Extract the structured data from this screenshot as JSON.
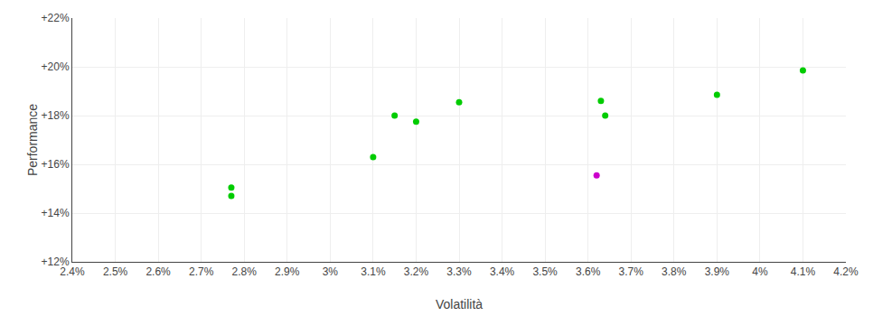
{
  "chart_data": {
    "type": "scatter",
    "xlabel": "Volatilità",
    "ylabel": "Performance",
    "xlim": [
      0.024,
      0.042
    ],
    "ylim": [
      0.12,
      0.22
    ],
    "xticks": [
      {
        "value": 0.024,
        "label": "2.4%"
      },
      {
        "value": 0.025,
        "label": "2.5%"
      },
      {
        "value": 0.026,
        "label": "2.6%"
      },
      {
        "value": 0.027,
        "label": "2.7%"
      },
      {
        "value": 0.028,
        "label": "2.8%"
      },
      {
        "value": 0.029,
        "label": "2.9%"
      },
      {
        "value": 0.03,
        "label": "3%"
      },
      {
        "value": 0.031,
        "label": "3.1%"
      },
      {
        "value": 0.032,
        "label": "3.2%"
      },
      {
        "value": 0.033,
        "label": "3.3%"
      },
      {
        "value": 0.034,
        "label": "3.4%"
      },
      {
        "value": 0.035,
        "label": "3.5%"
      },
      {
        "value": 0.036,
        "label": "3.6%"
      },
      {
        "value": 0.037,
        "label": "3.7%"
      },
      {
        "value": 0.038,
        "label": "3.8%"
      },
      {
        "value": 0.039,
        "label": "3.9%"
      },
      {
        "value": 0.04,
        "label": "4%"
      },
      {
        "value": 0.041,
        "label": "4.1%"
      },
      {
        "value": 0.042,
        "label": "4.2%"
      }
    ],
    "yticks": [
      {
        "value": 0.12,
        "label": "+12%"
      },
      {
        "value": 0.14,
        "label": "+14%"
      },
      {
        "value": 0.16,
        "label": "+16%"
      },
      {
        "value": 0.18,
        "label": "+18%"
      },
      {
        "value": 0.2,
        "label": "+20%"
      },
      {
        "value": 0.22,
        "label": "+22%"
      }
    ],
    "grid": true,
    "series": [
      {
        "color": "#00cc00",
        "x": [
          0.0277,
          0.0277,
          0.031,
          0.0315,
          0.032,
          0.033,
          0.0363,
          0.0364,
          0.039,
          0.041
        ],
        "values": [
          0.1505,
          0.147,
          0.163,
          0.18,
          0.1775,
          0.1855,
          0.186,
          0.18,
          0.1885,
          0.1985
        ]
      },
      {
        "color": "#cc00cc",
        "x": [
          0.0362
        ],
        "values": [
          0.1555
        ]
      }
    ]
  }
}
